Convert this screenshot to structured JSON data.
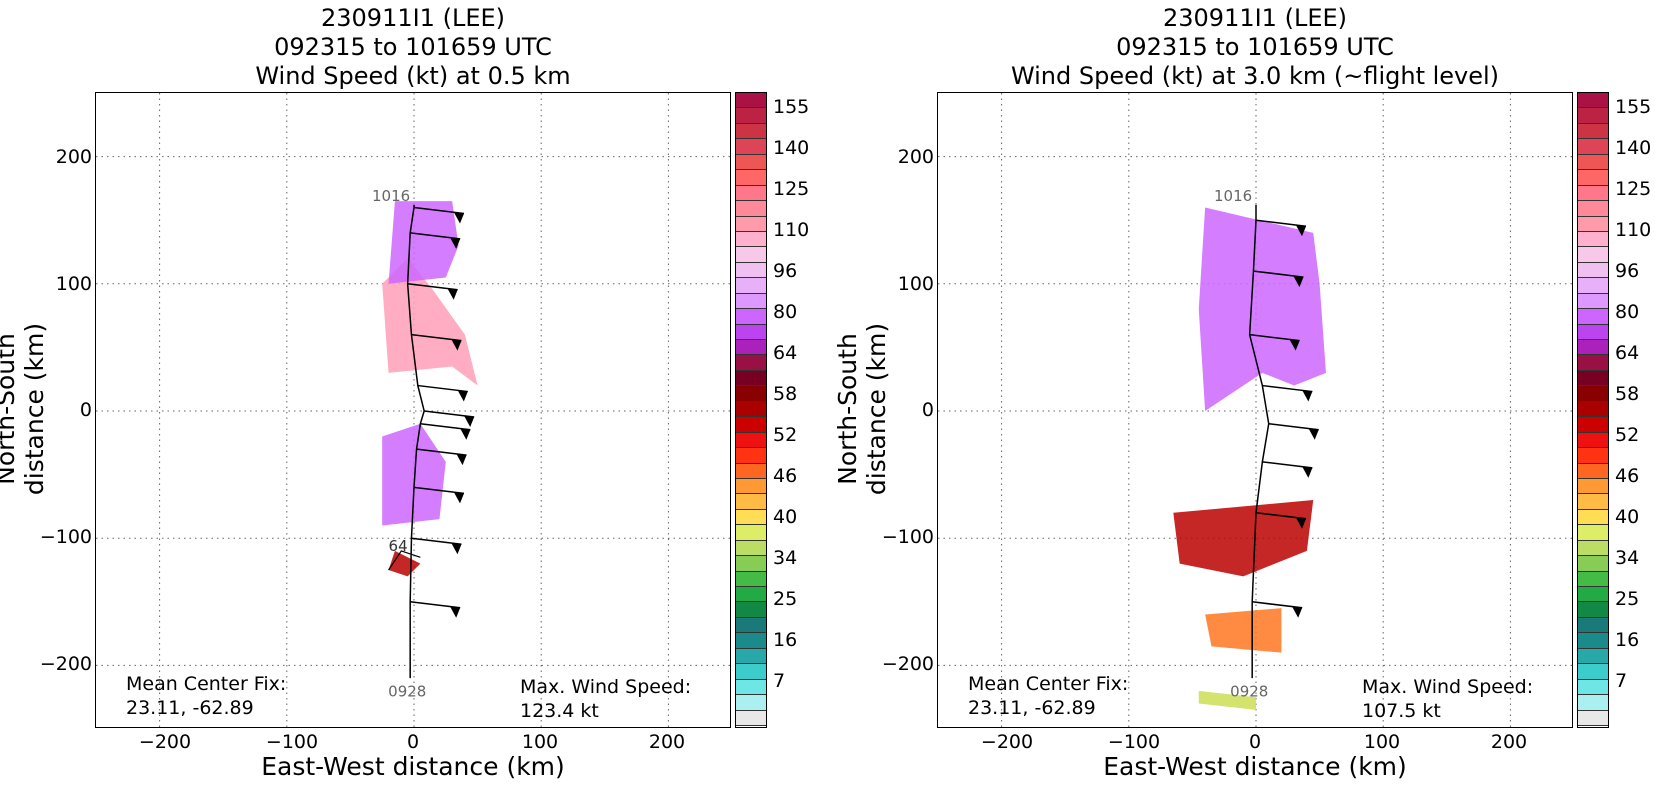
{
  "panels": [
    {
      "title_line1": "230911I1 (LEE)",
      "title_line2": "092315 to 101659 UTC",
      "title_line3": "Wind Speed (kt) at 0.5 km",
      "xlabel": "East-West distance (km)",
      "ylabel": "North-South distance (km)",
      "center_fix_label": "Mean Center Fix:",
      "center_fix_value": "23.11, -62.89",
      "max_wind_label": "Max. Wind Speed:",
      "max_wind_value": "123.4 kt",
      "time_start": "0928",
      "time_end": "1016",
      "contour_label": "64"
    },
    {
      "title_line1": "230911I1 (LEE)",
      "title_line2": "092315 to 101659 UTC",
      "title_line3": "Wind Speed (kt) at 3.0 km (~flight level)",
      "xlabel": "East-West distance (km)",
      "ylabel": "North-South distance (km)",
      "center_fix_label": "Mean Center Fix:",
      "center_fix_value": "23.11, -62.89",
      "max_wind_label": "Max. Wind Speed:",
      "max_wind_value": "107.5 kt",
      "time_start": "0928",
      "time_end": "1016"
    }
  ],
  "axes": {
    "xticks": [
      "−200",
      "−100",
      "0",
      "100",
      "200"
    ],
    "yticks": [
      "200",
      "100",
      "0",
      "−100",
      "−200"
    ]
  },
  "colorbar": {
    "labels": [
      "155",
      "140",
      "125",
      "110",
      "96",
      "80",
      "64",
      "58",
      "52",
      "46",
      "40",
      "34",
      "25",
      "16",
      "7"
    ],
    "colors": [
      "#e8e8e8",
      "#aaf0f0",
      "#6ee6e6",
      "#3ccccc",
      "#28a8a8",
      "#1a8a8a",
      "#1a7a7a",
      "#118844",
      "#22aa44",
      "#44bb44",
      "#88cc55",
      "#bbdd66",
      "#ddee66",
      "#ffdd55",
      "#ffbb44",
      "#ff9933",
      "#ff6622",
      "#ff3311",
      "#ee1111",
      "#cc0000",
      "#aa0000",
      "#880000",
      "#770022",
      "#991144",
      "#aa22bb",
      "#bb44ee",
      "#cc66ff",
      "#dd99ff",
      "#e8b0f8",
      "#f0c0f0",
      "#f8c8e8",
      "#ffb0cc",
      "#ff9aaa",
      "#ff8899",
      "#ff7788",
      "#ff6666",
      "#ee5555",
      "#dd4455",
      "#cc3344",
      "#bb2244",
      "#aa1144"
    ]
  },
  "chart_data": [
    {
      "type": "heatmap",
      "title": "230911I1 (LEE) 092315 to 101659 UTC Wind Speed (kt) at 0.5 km",
      "xlabel": "East-West distance (km)",
      "ylabel": "North-South distance (km)",
      "xlim": [
        -250,
        250
      ],
      "ylim": [
        -250,
        250
      ],
      "grid": true,
      "track": {
        "start": "0928",
        "end": "1016",
        "x": [
          -3,
          -3,
          -2,
          0,
          2,
          5,
          8,
          3,
          -2,
          -5,
          -3,
          0,
          0,
          0
        ],
        "y": [
          -210,
          -150,
          -100,
          -60,
          -30,
          -10,
          0,
          20,
          60,
          100,
          140,
          160,
          162,
          162
        ]
      },
      "wind_regions": [
        {
          "label": "pink high winds",
          "kt": 115,
          "x": [
            -20,
            30,
            50,
            40,
            15,
            -5,
            -25,
            -20
          ],
          "y": [
            30,
            35,
            20,
            60,
            95,
            120,
            100,
            30
          ]
        },
        {
          "label": "purple north",
          "kt": 85,
          "x": [
            -20,
            25,
            35,
            30,
            -15,
            -20
          ],
          "y": [
            100,
            105,
            130,
            165,
            165,
            100
          ]
        },
        {
          "label": "purple south",
          "kt": 85,
          "x": [
            -25,
            20,
            25,
            5,
            -25,
            -25
          ],
          "y": [
            -90,
            -85,
            -40,
            -10,
            -20,
            -90
          ]
        },
        {
          "label": "red south",
          "kt": 58,
          "x": [
            -15,
            5,
            -5,
            -20,
            -15
          ],
          "y": [
            -110,
            -120,
            -130,
            -125,
            -110
          ]
        }
      ],
      "contour_64": [
        [
          -20,
          -125
        ],
        [
          -10,
          -110
        ],
        [
          5,
          -115
        ]
      ],
      "max_wind_kt": 123.4,
      "center_fix": [
        23.11,
        -62.89
      ]
    },
    {
      "type": "heatmap",
      "title": "230911I1 (LEE) 092315 to 101659 UTC Wind Speed (kt) at 3.0 km (~flight level)",
      "xlabel": "East-West distance (km)",
      "ylabel": "North-South distance (km)",
      "xlim": [
        -250,
        250
      ],
      "ylim": [
        -250,
        250
      ],
      "grid": true,
      "track": {
        "start": "0928",
        "end": "1016",
        "x": [
          -3,
          -3,
          0,
          5,
          10,
          5,
          -5,
          -2,
          0,
          0
        ],
        "y": [
          -210,
          -150,
          -80,
          -40,
          -10,
          20,
          60,
          110,
          150,
          162
        ]
      },
      "wind_regions": [
        {
          "label": "pink/purple north",
          "kt": 100,
          "x": [
            -40,
            45,
            50,
            55,
            30,
            5,
            -40,
            -45,
            -40
          ],
          "y": [
            160,
            140,
            100,
            30,
            20,
            30,
            0,
            80,
            160
          ]
        },
        {
          "label": "dark red south",
          "kt": 60,
          "x": [
            -65,
            45,
            40,
            -10,
            -60,
            -65
          ],
          "y": [
            -80,
            -70,
            -110,
            -130,
            -120,
            -80
          ]
        },
        {
          "label": "orange south",
          "kt": 50,
          "x": [
            -40,
            20,
            20,
            -35,
            -40
          ],
          "y": [
            -160,
            -155,
            -190,
            -185,
            -160
          ]
        },
        {
          "label": "yellow-green band",
          "kt": 40,
          "x": [
            -45,
            0,
            0,
            -45
          ],
          "y": [
            -220,
            -225,
            -235,
            -230
          ]
        }
      ],
      "max_wind_kt": 107.5,
      "center_fix": [
        23.11,
        -62.89
      ]
    }
  ]
}
